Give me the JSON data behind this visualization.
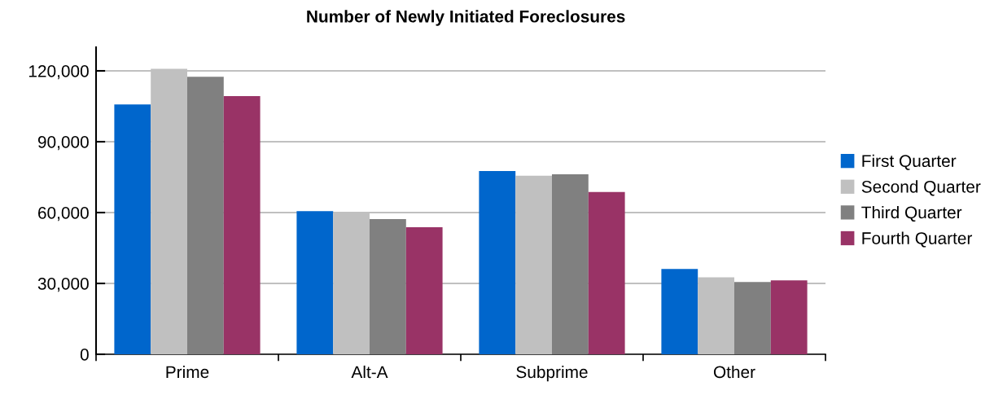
{
  "chart_data": {
    "type": "bar",
    "title": "Number of Newly Initiated Foreclosures",
    "categories": [
      "Prime",
      "Alt-A",
      "Subprime",
      "Other"
    ],
    "series": [
      {
        "name": "First Quarter",
        "color": "#0066cc",
        "values": [
          105800,
          60600,
          77600,
          36100
        ]
      },
      {
        "name": "Second Quarter",
        "color": "#c0c0c0",
        "values": [
          120900,
          60000,
          75600,
          32600
        ]
      },
      {
        "name": "Third Quarter",
        "color": "#808080",
        "values": [
          117500,
          57200,
          76200,
          30600
        ]
      },
      {
        "name": "Fourth Quarter",
        "color": "#993366",
        "values": [
          109300,
          53800,
          68700,
          31300
        ]
      }
    ],
    "ylim": [
      0,
      130000
    ],
    "yticks": [
      {
        "value": 0,
        "label": "0"
      },
      {
        "value": 30000,
        "label": "30,000"
      },
      {
        "value": 60000,
        "label": "60,000"
      },
      {
        "value": 90000,
        "label": "90,000"
      },
      {
        "value": 120000,
        "label": "120,000"
      }
    ],
    "grid": "y",
    "legend": "right"
  }
}
